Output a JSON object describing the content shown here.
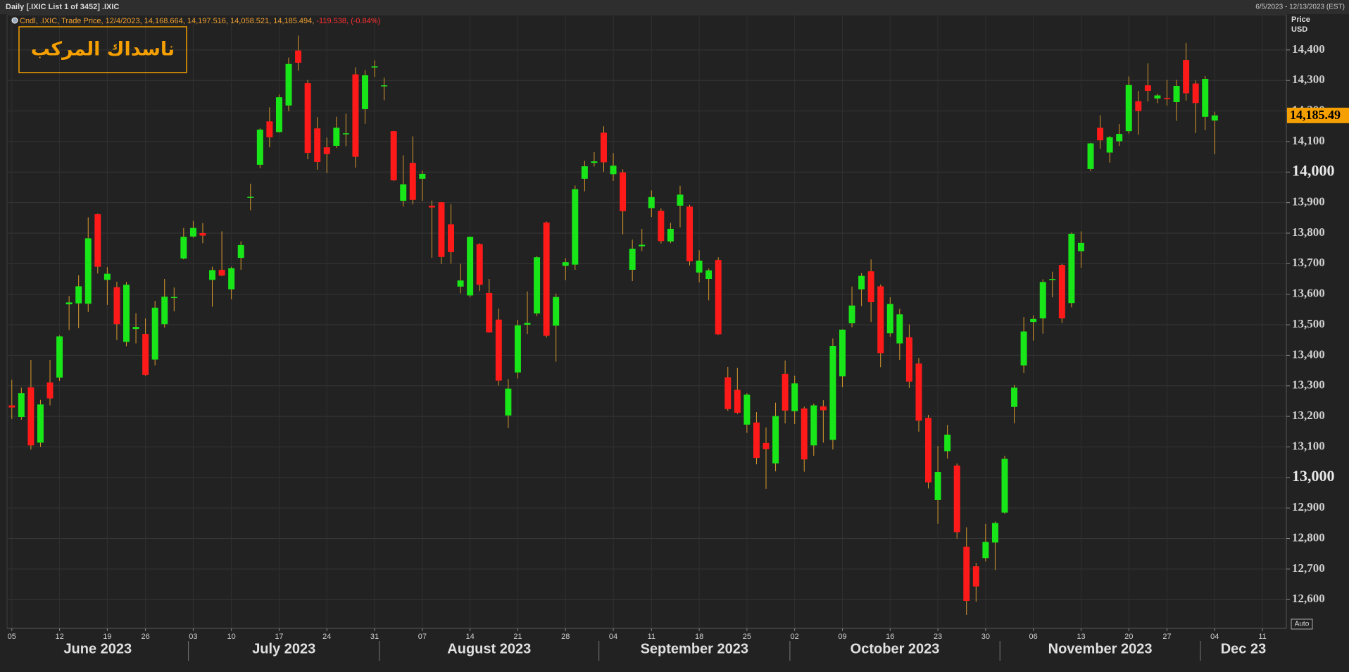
{
  "header": {
    "title": "Daily [.IXIC List 1 of 3452] .IXIC",
    "range": "6/5/2023 - 12/13/2023 (EST)"
  },
  "chart_data": {
    "type": "candlestick",
    "title": "ناسداك المركب",
    "legend_text": "Cndl, .IXIC, Trade Price, 12/4/2023, 14,168.664, 14,197.516, 14,058.521, 14,185.494,",
    "legend_change": "-119.538, (-0.84%)",
    "y_label": "Price",
    "y_unit": "USD",
    "scale_mode": "Auto",
    "last_price": {
      "value": 14185.494,
      "label": "14,185.49"
    },
    "up_color": "#19e619",
    "down_color": "#ff1a1a",
    "wick_color": "#d99a2b",
    "grid": true,
    "xlim": [
      "2023-06-05",
      "2023-12-13"
    ],
    "ylim": [
      12506,
      14515
    ],
    "yticks": [
      {
        "value": 12600,
        "label": "12,600"
      },
      {
        "value": 12700,
        "label": "12,700"
      },
      {
        "value": 12800,
        "label": "12,800"
      },
      {
        "value": 12900,
        "label": "12,900"
      },
      {
        "value": 13000,
        "label": "13,000"
      },
      {
        "value": 13100,
        "label": "13,100"
      },
      {
        "value": 13200,
        "label": "13,200"
      },
      {
        "value": 13300,
        "label": "13,300"
      },
      {
        "value": 13400,
        "label": "13,400"
      },
      {
        "value": 13500,
        "label": "13,500"
      },
      {
        "value": 13600,
        "label": "13,600"
      },
      {
        "value": 13700,
        "label": "13,700"
      },
      {
        "value": 13800,
        "label": "13,800"
      },
      {
        "value": 13900,
        "label": "13,900"
      },
      {
        "value": 14000,
        "label": "14,000"
      },
      {
        "value": 14100,
        "label": "14,100"
      },
      {
        "value": 14200,
        "label": "14,200"
      },
      {
        "value": 14300,
        "label": "14,300"
      },
      {
        "value": 14400,
        "label": "14,400"
      }
    ],
    "xticks": [
      {
        "value": "2023-06-05",
        "label": "05"
      },
      {
        "value": "2023-06-12",
        "label": "12"
      },
      {
        "value": "2023-06-19",
        "label": "19"
      },
      {
        "value": "2023-06-26",
        "label": "26"
      },
      {
        "value": "2023-07-03",
        "label": "03"
      },
      {
        "value": "2023-07-10",
        "label": "10"
      },
      {
        "value": "2023-07-17",
        "label": "17"
      },
      {
        "value": "2023-07-24",
        "label": "24"
      },
      {
        "value": "2023-07-31",
        "label": "31"
      },
      {
        "value": "2023-08-07",
        "label": "07"
      },
      {
        "value": "2023-08-14",
        "label": "14"
      },
      {
        "value": "2023-08-21",
        "label": "21"
      },
      {
        "value": "2023-08-28",
        "label": "28"
      },
      {
        "value": "2023-09-04",
        "label": "04"
      },
      {
        "value": "2023-09-11",
        "label": "11"
      },
      {
        "value": "2023-09-18",
        "label": "18"
      },
      {
        "value": "2023-09-25",
        "label": "25"
      },
      {
        "value": "2023-10-02",
        "label": "02"
      },
      {
        "value": "2023-10-09",
        "label": "09"
      },
      {
        "value": "2023-10-16",
        "label": "16"
      },
      {
        "value": "2023-10-23",
        "label": "23"
      },
      {
        "value": "2023-10-30",
        "label": "30"
      },
      {
        "value": "2023-11-06",
        "label": "06"
      },
      {
        "value": "2023-11-13",
        "label": "13"
      },
      {
        "value": "2023-11-20",
        "label": "20"
      },
      {
        "value": "2023-11-27",
        "label": "27"
      },
      {
        "value": "2023-12-04",
        "label": "04"
      },
      {
        "value": "2023-12-11",
        "label": "11"
      }
    ],
    "month_ticks": [
      {
        "value": "2023-06",
        "label": "June 2023"
      },
      {
        "value": "2023-07",
        "label": "July 2023"
      },
      {
        "value": "2023-08",
        "label": "August 2023"
      },
      {
        "value": "2023-09",
        "label": "September 2023"
      },
      {
        "value": "2023-10",
        "label": "October 2023"
      },
      {
        "value": "2023-11",
        "label": "November 2023"
      },
      {
        "value": "2023-12",
        "label": "Dec 23"
      }
    ],
    "x": [
      "2023-06-05",
      "2023-06-06",
      "2023-06-07",
      "2023-06-08",
      "2023-06-09",
      "2023-06-12",
      "2023-06-13",
      "2023-06-14",
      "2023-06-15",
      "2023-06-16",
      "2023-06-20",
      "2023-06-21",
      "2023-06-22",
      "2023-06-23",
      "2023-06-26",
      "2023-06-27",
      "2023-06-28",
      "2023-06-29",
      "2023-06-30",
      "2023-07-03",
      "2023-07-05",
      "2023-07-06",
      "2023-07-07",
      "2023-07-10",
      "2023-07-11",
      "2023-07-12",
      "2023-07-13",
      "2023-07-14",
      "2023-07-17",
      "2023-07-18",
      "2023-07-19",
      "2023-07-20",
      "2023-07-21",
      "2023-07-24",
      "2023-07-25",
      "2023-07-26",
      "2023-07-27",
      "2023-07-28",
      "2023-07-31",
      "2023-08-01",
      "2023-08-02",
      "2023-08-03",
      "2023-08-04",
      "2023-08-07",
      "2023-08-08",
      "2023-08-09",
      "2023-08-10",
      "2023-08-11",
      "2023-08-14",
      "2023-08-15",
      "2023-08-16",
      "2023-08-17",
      "2023-08-18",
      "2023-08-21",
      "2023-08-22",
      "2023-08-23",
      "2023-08-24",
      "2023-08-25",
      "2023-08-28",
      "2023-08-29",
      "2023-08-30",
      "2023-08-31",
      "2023-09-01",
      "2023-09-05",
      "2023-09-06",
      "2023-09-07",
      "2023-09-08",
      "2023-09-11",
      "2023-09-12",
      "2023-09-13",
      "2023-09-14",
      "2023-09-15",
      "2023-09-18",
      "2023-09-19",
      "2023-09-20",
      "2023-09-21",
      "2023-09-22",
      "2023-09-25",
      "2023-09-26",
      "2023-09-27",
      "2023-09-28",
      "2023-09-29",
      "2023-10-02",
      "2023-10-03",
      "2023-10-04",
      "2023-10-05",
      "2023-10-06",
      "2023-10-09",
      "2023-10-10",
      "2023-10-11",
      "2023-10-12",
      "2023-10-13",
      "2023-10-16",
      "2023-10-17",
      "2023-10-18",
      "2023-10-19",
      "2023-10-20",
      "2023-10-23",
      "2023-10-24",
      "2023-10-25",
      "2023-10-26",
      "2023-10-27",
      "2023-10-30",
      "2023-10-31",
      "2023-11-01",
      "2023-11-02",
      "2023-11-03",
      "2023-11-06",
      "2023-11-07",
      "2023-11-08",
      "2023-11-09",
      "2023-11-10",
      "2023-11-13",
      "2023-11-14",
      "2023-11-15",
      "2023-11-16",
      "2023-11-17",
      "2023-11-20",
      "2023-11-21",
      "2023-11-22",
      "2023-11-24",
      "2023-11-27",
      "2023-11-28",
      "2023-11-29",
      "2023-11-30",
      "2023-12-01",
      "2023-12-04"
    ],
    "ohlc": [
      [
        13236,
        13320,
        13191,
        13229
      ],
      [
        13198,
        13294,
        13189,
        13276
      ],
      [
        13295,
        13385,
        13091,
        13105
      ],
      [
        13114,
        13254,
        13100,
        13239
      ],
      [
        13311,
        13385,
        13236,
        13259
      ],
      [
        13327,
        13465,
        13316,
        13462
      ],
      [
        13567,
        13594,
        13483,
        13573
      ],
      [
        13570,
        13662,
        13489,
        13626
      ],
      [
        13569,
        13852,
        13542,
        13783
      ],
      [
        13862,
        13864,
        13668,
        13690
      ],
      [
        13647,
        13689,
        13565,
        13667
      ],
      [
        13623,
        13641,
        13450,
        13502
      ],
      [
        13444,
        13640,
        13430,
        13631
      ],
      [
        13486,
        13538,
        13439,
        13493
      ],
      [
        13470,
        13521,
        13333,
        13336
      ],
      [
        13386,
        13578,
        13367,
        13556
      ],
      [
        13502,
        13650,
        13491,
        13592
      ],
      [
        13591,
        13622,
        13544,
        13591
      ],
      [
        13717,
        13817,
        13714,
        13788
      ],
      [
        13789,
        13840,
        13785,
        13817
      ],
      [
        13800,
        13833,
        13767,
        13792
      ],
      [
        13647,
        13690,
        13559,
        13679
      ],
      [
        13680,
        13806,
        13659,
        13661
      ],
      [
        13616,
        13690,
        13583,
        13685
      ],
      [
        13719,
        13773,
        13680,
        13761
      ],
      [
        13916,
        13962,
        13875,
        13919
      ],
      [
        14024,
        14143,
        14013,
        14139
      ],
      [
        14166,
        14212,
        14081,
        14114
      ],
      [
        14131,
        14254,
        14129,
        14245
      ],
      [
        14218,
        14375,
        14199,
        14354
      ],
      [
        14398,
        14447,
        14332,
        14358
      ],
      [
        14291,
        14302,
        14042,
        14063
      ],
      [
        14143,
        14180,
        14008,
        14033
      ],
      [
        14081,
        14113,
        13997,
        14059
      ],
      [
        14086,
        14181,
        14079,
        14145
      ],
      [
        14124,
        14191,
        14085,
        14127
      ],
      [
        14320,
        14343,
        14015,
        14050
      ],
      [
        14206,
        14334,
        14158,
        14317
      ],
      [
        14343,
        14366,
        14312,
        14346
      ],
      [
        14283,
        14309,
        14235,
        14284
      ],
      [
        14134,
        14135,
        13971,
        13973
      ],
      [
        13906,
        14055,
        13887,
        13960
      ],
      [
        14030,
        14117,
        13894,
        13909
      ],
      [
        13978,
        14005,
        13906,
        13994
      ],
      [
        13890,
        13907,
        13719,
        13884
      ],
      [
        13901,
        13902,
        13699,
        13722
      ],
      [
        13829,
        13895,
        13700,
        13738
      ],
      [
        13625,
        13700,
        13603,
        13645
      ],
      [
        13596,
        13789,
        13590,
        13788
      ],
      [
        13764,
        13767,
        13610,
        13631
      ],
      [
        13604,
        13650,
        13474,
        13475
      ],
      [
        13517,
        13553,
        13301,
        13317
      ],
      [
        13203,
        13322,
        13162,
        13291
      ],
      [
        13344,
        13516,
        13324,
        13498
      ],
      [
        13500,
        13609,
        13470,
        13506
      ],
      [
        13537,
        13725,
        13528,
        13721
      ],
      [
        13835,
        13838,
        13458,
        13464
      ],
      [
        13497,
        13602,
        13379,
        13591
      ],
      [
        13693,
        13718,
        13646,
        13705
      ],
      [
        13697,
        13956,
        13680,
        13944
      ],
      [
        13978,
        14037,
        13937,
        14019
      ],
      [
        14030,
        14065,
        14018,
        14035
      ],
      [
        14129,
        14150,
        14001,
        14032
      ],
      [
        13993,
        14062,
        13971,
        14021
      ],
      [
        13999,
        14009,
        13796,
        13872
      ],
      [
        13680,
        13779,
        13643,
        13749
      ],
      [
        13757,
        13814,
        13741,
        13762
      ],
      [
        13882,
        13940,
        13853,
        13918
      ],
      [
        13873,
        13881,
        13766,
        13774
      ],
      [
        13773,
        13834,
        13767,
        13814
      ],
      [
        13890,
        13955,
        13819,
        13926
      ],
      [
        13887,
        13893,
        13694,
        13708
      ],
      [
        13671,
        13744,
        13639,
        13710
      ],
      [
        13650,
        13684,
        13580,
        13678
      ],
      [
        13712,
        13721,
        13467,
        13469
      ],
      [
        13328,
        13362,
        13218,
        13224
      ],
      [
        13287,
        13359,
        13208,
        13212
      ],
      [
        13173,
        13276,
        13146,
        13271
      ],
      [
        13180,
        13214,
        13043,
        13064
      ],
      [
        13113,
        13164,
        12963,
        13093
      ],
      [
        13046,
        13245,
        13020,
        13201
      ],
      [
        13339,
        13383,
        13177,
        13219
      ],
      [
        13217,
        13333,
        13175,
        13308
      ],
      [
        13226,
        13232,
        13019,
        13059
      ],
      [
        13105,
        13242,
        13071,
        13236
      ],
      [
        13233,
        13253,
        13114,
        13220
      ],
      [
        13123,
        13455,
        13092,
        13431
      ],
      [
        13331,
        13485,
        13296,
        13484
      ],
      [
        13505,
        13625,
        13492,
        13563
      ],
      [
        13616,
        13669,
        13561,
        13660
      ],
      [
        13675,
        13714,
        13509,
        13574
      ],
      [
        13626,
        13632,
        13361,
        13407
      ],
      [
        13472,
        13590,
        13461,
        13568
      ],
      [
        13439,
        13552,
        13385,
        13534
      ],
      [
        13459,
        13501,
        13293,
        13314
      ],
      [
        13373,
        13391,
        13150,
        13186
      ],
      [
        13195,
        13205,
        12964,
        12984
      ],
      [
        12926,
        13103,
        12848,
        13018
      ],
      [
        13086,
        13172,
        13062,
        13140
      ],
      [
        13039,
        13046,
        12800,
        12821
      ],
      [
        12773,
        12837,
        12550,
        12596
      ],
      [
        12709,
        12720,
        12593,
        12643
      ],
      [
        12736,
        12848,
        12725,
        12789
      ],
      [
        12787,
        12856,
        12697,
        12851
      ],
      [
        12885,
        13071,
        12881,
        13061
      ],
      [
        13231,
        13303,
        13177,
        13294
      ],
      [
        13367,
        13525,
        13342,
        13478
      ],
      [
        13509,
        13531,
        13448,
        13519
      ],
      [
        13521,
        13649,
        13471,
        13640
      ],
      [
        13648,
        13674,
        13590,
        13650
      ],
      [
        13696,
        13700,
        13506,
        13521
      ],
      [
        13571,
        13802,
        13557,
        13798
      ],
      [
        13741,
        13806,
        13687,
        13768
      ],
      [
        14010,
        14096,
        14003,
        14094
      ],
      [
        14145,
        14186,
        14076,
        14104
      ],
      [
        14064,
        14118,
        14031,
        14114
      ],
      [
        14101,
        14157,
        14086,
        14125
      ],
      [
        14134,
        14313,
        14126,
        14285
      ],
      [
        14232,
        14266,
        14122,
        14200
      ],
      [
        14284,
        14356,
        14231,
        14266
      ],
      [
        14241,
        14257,
        14226,
        14251
      ],
      [
        14243,
        14302,
        14218,
        14241
      ],
      [
        14229,
        14302,
        14168,
        14282
      ],
      [
        14367,
        14423,
        14234,
        14258
      ],
      [
        14290,
        14300,
        14128,
        14226
      ],
      [
        14181,
        14314,
        14137,
        14305
      ],
      [
        14168.664,
        14197.516,
        14058.521,
        14185.494
      ]
    ]
  }
}
